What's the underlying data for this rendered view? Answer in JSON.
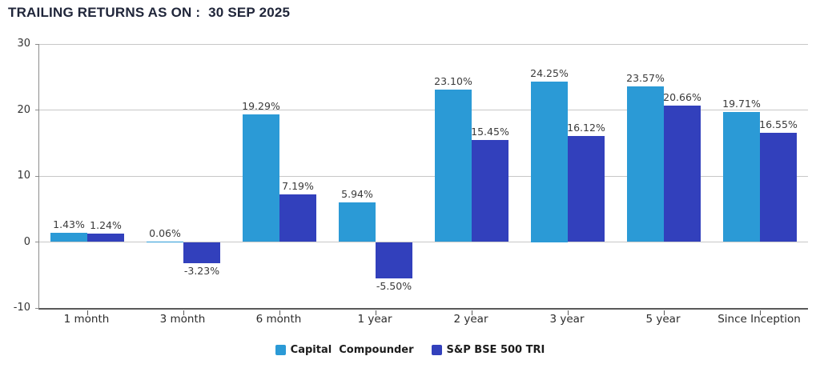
{
  "title": "TRAILING RETURNS AS ON :  30 SEP 2025",
  "chart_data": {
    "type": "bar",
    "title": "TRAILING RETURNS AS ON : 30 SEP 2025",
    "categories": [
      "1 month",
      "3 month",
      "6 month",
      "1 year",
      "2 year",
      "3 year",
      "5 year",
      "Since Inception"
    ],
    "series": [
      {
        "name": "Capital  Compounder",
        "color": "#2B9AD6",
        "values": [
          1.43,
          0.06,
          19.29,
          5.94,
          23.1,
          24.25,
          23.57,
          19.71
        ]
      },
      {
        "name": "S&P BSE 500 TRI",
        "color": "#3240BC",
        "values": [
          1.24,
          -3.23,
          7.19,
          -5.5,
          15.45,
          16.12,
          20.66,
          16.55
        ]
      }
    ],
    "value_label_suffix": "%",
    "value_label_decimals": 2,
    "xlabel": "",
    "ylabel": "",
    "ylim": [
      -10,
      30
    ],
    "yticks": [
      30,
      20,
      10,
      0,
      -10
    ],
    "grid": true,
    "legend_position": "bottom",
    "colors": {
      "gridline": "#C7C7C7",
      "axis": "#595959",
      "title_text": "#20263A",
      "label_text": "#3A3A3A"
    }
  }
}
